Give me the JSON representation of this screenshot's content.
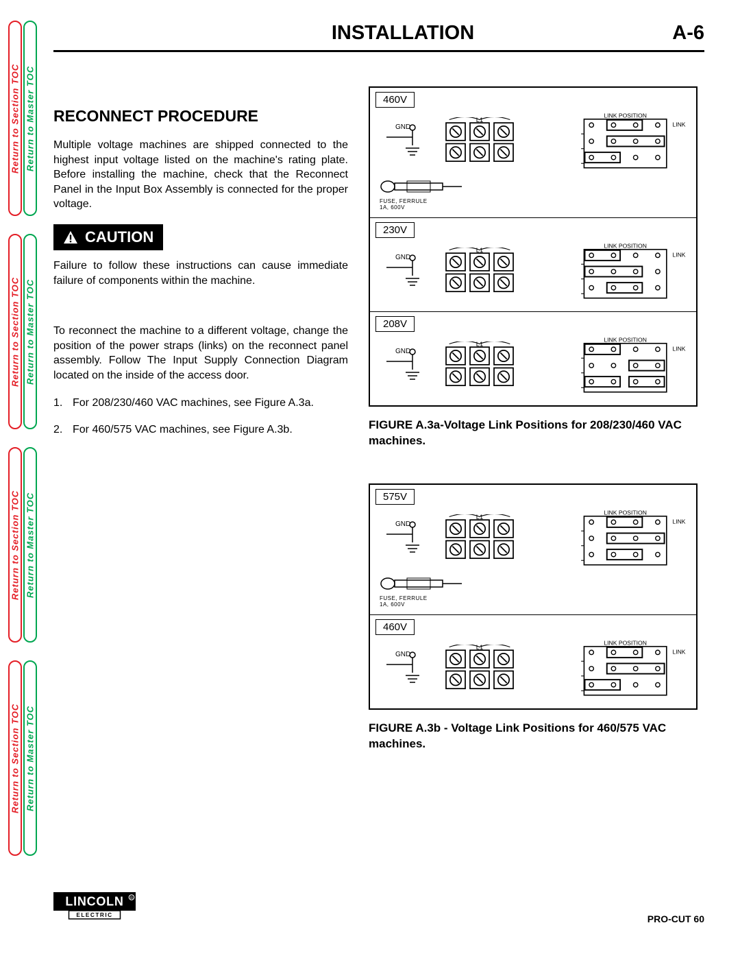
{
  "sideTab": {
    "red": "Return to Section TOC",
    "green": "Return to Master TOC"
  },
  "header": {
    "title": "INSTALLATION",
    "pagenum": "A-6"
  },
  "section": {
    "title": "RECONNECT PROCEDURE",
    "intro": "Multiple voltage machines are shipped connected to the highest input voltage listed on the machine's rating plate.  Before installing the machine, check that the Reconnect Panel in the Input Box Assembly is connected for the proper voltage.",
    "cautionLabel": "CAUTION",
    "cautionText": "Failure to follow these instructions can cause immediate failure of components within the machine.",
    "reconnectText": "To reconnect the machine to a different voltage, change the position of the power straps (links) on the reconnect panel assembly.  Follow The Input Supply Connection Diagram located on the inside of the access door.",
    "steps": [
      "For 208/230/460 VAC machines, see Figure A.3a.",
      "For 460/575 VAC machines, see Figure A.3b."
    ]
  },
  "figureA": {
    "sections": [
      {
        "label": "460V",
        "showFuse": true
      },
      {
        "label": "230V",
        "showFuse": false
      },
      {
        "label": "208V",
        "showFuse": false
      }
    ],
    "caption": "FIGURE A.3a-Voltage Link Positions for 208/230/460 VAC machines."
  },
  "figureB": {
    "sections": [
      {
        "label": "575V",
        "showFuse": true
      },
      {
        "label": "460V",
        "showFuse": false
      }
    ],
    "caption": "FIGURE A.3b - Voltage Link Positions for 460/575 VAC machines."
  },
  "diagram": {
    "gndLabel": "GND",
    "linkHeader": "LINK POSITION",
    "linkSide": "LINK",
    "fuseLabel1": "FUSE, FERRULE",
    "fuseLabel2": "1A, 600V"
  },
  "footer": {
    "brandTop": "LINCOLN",
    "brandBottom": "ELECTRIC",
    "model": "PRO-CUT 60"
  },
  "colors": {
    "red": "#e41e26",
    "green": "#00a650",
    "black": "#000000"
  }
}
